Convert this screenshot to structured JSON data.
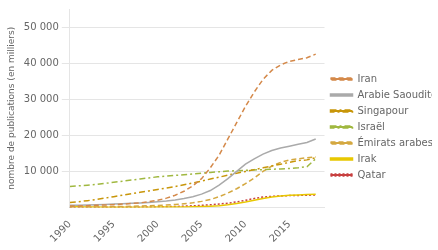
{
  "chart_data": {
    "type": "line",
    "y_label": "nombre de publications (en milliers)",
    "x": [
      1990,
      1991,
      1992,
      1993,
      1994,
      1995,
      1996,
      1997,
      1998,
      1999,
      2000,
      2001,
      2002,
      2003,
      2004,
      2005,
      2006,
      2007,
      2008,
      2009,
      2010,
      2011,
      2012,
      2013,
      2014,
      2015,
      2016,
      2017,
      2018
    ],
    "xlim": [
      1990,
      2019
    ],
    "xticks": [
      1990,
      1995,
      2000,
      2005,
      2010,
      2015
    ],
    "ylim": [
      0,
      55000
    ],
    "yticks": [
      {
        "value": 10000,
        "label": "10 000"
      },
      {
        "value": 20000,
        "label": "20 000"
      },
      {
        "value": 30000,
        "label": "30 000"
      },
      {
        "value": 40000,
        "label": "40 000"
      },
      {
        "value": 50000,
        "label": "50 000"
      }
    ],
    "grid": "y",
    "legend": "right",
    "marker": "none",
    "series": [
      {
        "name": "Iran",
        "color": "#d4894a",
        "line_style": "dashed",
        "values": [
          400,
          450,
          500,
          600,
          700,
          800,
          950,
          1100,
          1300,
          1600,
          2000,
          2600,
          3400,
          4500,
          6000,
          8000,
          11000,
          14500,
          19000,
          23500,
          28000,
          32000,
          35500,
          38000,
          39500,
          40500,
          41000,
          41500,
          42500
        ]
      },
      {
        "name": "Arabie Saoudite",
        "color": "#aaaaaa",
        "line_style": "solid",
        "values": [
          600,
          650,
          700,
          780,
          860,
          950,
          1050,
          1150,
          1280,
          1420,
          1600,
          1800,
          2100,
          2500,
          3000,
          3700,
          4700,
          6200,
          8000,
          10000,
          12000,
          13500,
          14800,
          15800,
          16500,
          17000,
          17500,
          18000,
          19000
        ]
      },
      {
        "name": "Singapour",
        "color": "#c8960a",
        "line_style": "dashdot",
        "values": [
          1400,
          1600,
          1900,
          2200,
          2600,
          3000,
          3400,
          3800,
          4200,
          4600,
          5000,
          5400,
          5800,
          6300,
          6800,
          7300,
          7900,
          8400,
          9000,
          9500,
          10000,
          10500,
          11000,
          11500,
          12000,
          12500,
          13000,
          13200,
          13800
        ]
      },
      {
        "name": "Israël",
        "color": "#a0b840",
        "line_style": "dashdot",
        "values": [
          5800,
          6000,
          6200,
          6400,
          6700,
          7000,
          7300,
          7600,
          7900,
          8200,
          8500,
          8700,
          8900,
          9100,
          9300,
          9500,
          9700,
          9900,
          10100,
          10200,
          10300,
          10400,
          10500,
          10600,
          10700,
          10800,
          11000,
          11300,
          13500
        ]
      },
      {
        "name": "Émirats arabes unis",
        "color": "#d4a840",
        "line_style": "dashed",
        "values": [
          100,
          120,
          140,
          170,
          200,
          240,
          290,
          350,
          420,
          500,
          590,
          700,
          850,
          1050,
          1300,
          1700,
          2200,
          3000,
          4000,
          5200,
          6600,
          8200,
          10000,
          11500,
          12500,
          13200,
          13500,
          13800,
          14000
        ]
      },
      {
        "name": "Irak",
        "color": "#e8c800",
        "line_style": "solid",
        "values": [
          250,
          180,
          140,
          110,
          90,
          80,
          75,
          80,
          90,
          100,
          110,
          130,
          150,
          170,
          200,
          250,
          350,
          500,
          750,
          1100,
          1500,
          2000,
          2500,
          2900,
          3200,
          3400,
          3500,
          3600,
          3700
        ]
      },
      {
        "name": "Qatar",
        "color": "#c84040",
        "line_style": "dotted",
        "values": [
          15,
          20,
          25,
          30,
          38,
          50,
          65,
          85,
          110,
          140,
          180,
          230,
          290,
          370,
          470,
          600,
          750,
          950,
          1200,
          1550,
          2000,
          2500,
          2900,
          3100,
          3200,
          3300,
          3350,
          3400,
          3500
        ]
      }
    ]
  }
}
